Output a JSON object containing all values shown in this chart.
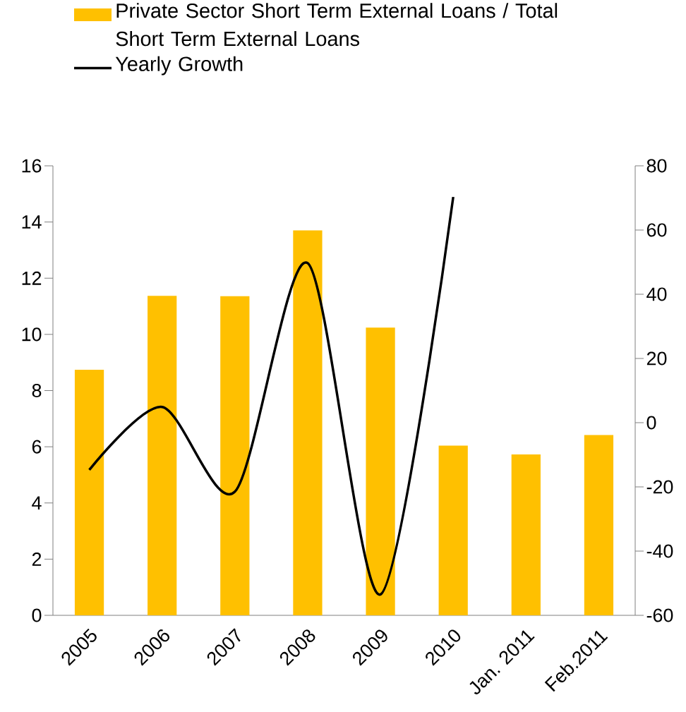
{
  "chart_data": {
    "type": "bar",
    "categories": [
      "2005",
      "2006",
      "2007",
      "2008",
      "2009",
      "2010",
      "Jan. 2011",
      "Feb.2011"
    ],
    "series": [
      {
        "name": "Private Sector Short Term External Loans / Total Short Term External Loans",
        "color": "#ffc000",
        "values": [
          8.74,
          11.37,
          11.36,
          13.7,
          10.24,
          6.04,
          5.73,
          6.42
        ]
      },
      {
        "name": "Yearly Growth",
        "type": "line",
        "axis": "y2",
        "color": "#000000",
        "values": [
          -14.7,
          4.9,
          -21.5,
          49.7,
          -53.5,
          70.3,
          null,
          null
        ]
      }
    ],
    "ylim": [
      0,
      16
    ],
    "yticks": [
      0,
      2,
      4,
      6,
      8,
      10,
      12,
      14,
      16
    ],
    "y2lim": [
      -60,
      80
    ],
    "y2ticks": [
      -60,
      -40,
      -20,
      0,
      20,
      40,
      60,
      80
    ],
    "legend": "top left",
    "grid": false,
    "marker": "none",
    "line_style": "solid"
  }
}
